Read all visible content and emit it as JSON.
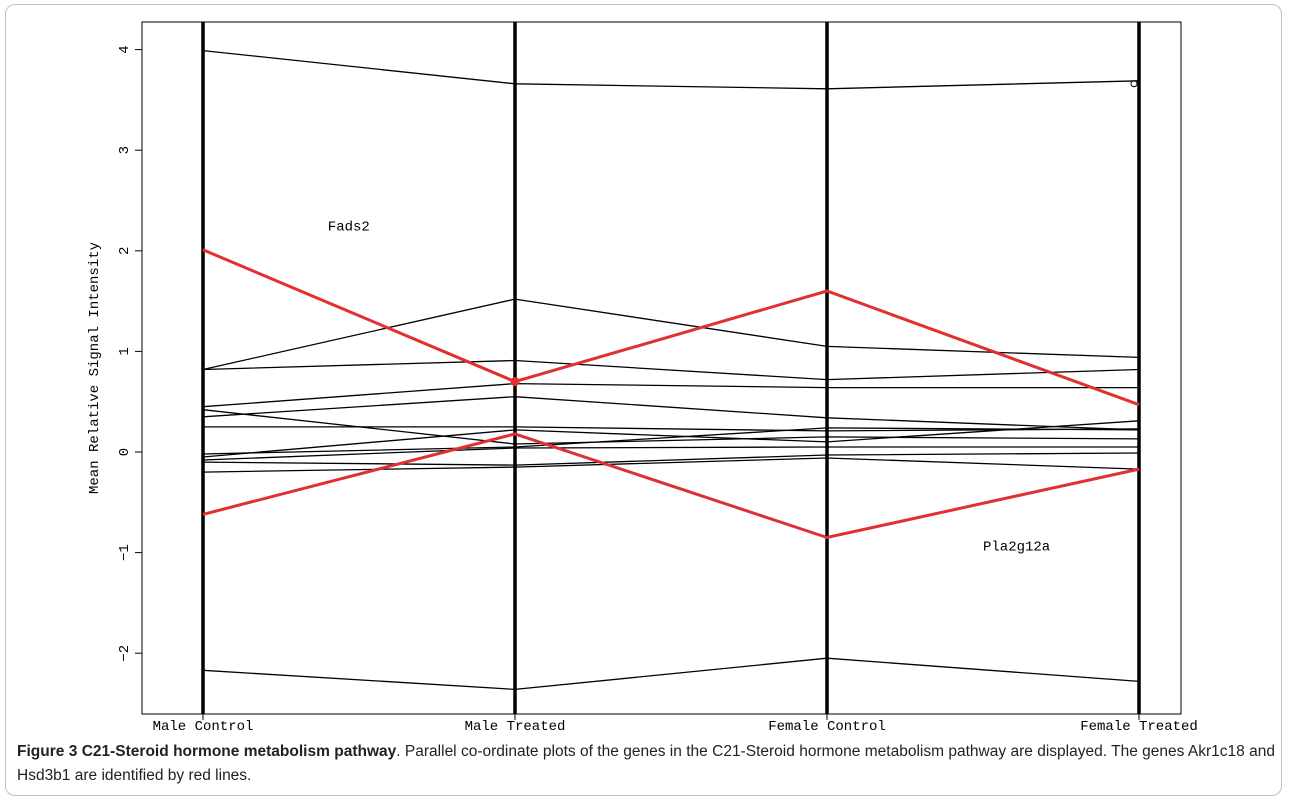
{
  "chart_data": {
    "type": "line",
    "subtype": "parallel-coordinates",
    "categories": [
      "Male Control",
      "Male Treated",
      "Female Control",
      "Female Treated"
    ],
    "ylabel": "Mean Relative Signal Intensity",
    "xlabel": "",
    "ylim": [
      -2.6,
      4.3
    ],
    "yticks": [
      -2,
      -1,
      0,
      1,
      2,
      3,
      4
    ],
    "grid": false,
    "annotations": [
      {
        "text": "Fads2",
        "x": 0.4,
        "y": 2.2
      },
      {
        "text": "Pla2g12a",
        "x": 2.5,
        "y": -0.98
      }
    ],
    "series": [
      {
        "values": [
          3.99,
          3.66,
          3.61,
          3.69
        ],
        "color": "#000000"
      },
      {
        "values": [
          0.82,
          1.52,
          1.05,
          0.94
        ],
        "color": "#000000"
      },
      {
        "values": [
          0.82,
          0.91,
          0.72,
          0.82
        ],
        "color": "#000000"
      },
      {
        "values": [
          0.45,
          0.68,
          0.64,
          0.64
        ],
        "color": "#000000"
      },
      {
        "values": [
          0.35,
          0.55,
          0.34,
          0.22
        ],
        "color": "#000000"
      },
      {
        "values": [
          0.25,
          0.25,
          0.21,
          0.23
        ],
        "color": "#000000"
      },
      {
        "values": [
          0.42,
          0.08,
          0.15,
          0.13
        ],
        "color": "#000000"
      },
      {
        "values": [
          -0.02,
          0.05,
          0.24,
          0.22
        ],
        "color": "#000000"
      },
      {
        "values": [
          -0.05,
          0.22,
          0.1,
          0.31
        ],
        "color": "#000000"
      },
      {
        "values": [
          -0.08,
          0.04,
          0.05,
          0.05
        ],
        "color": "#000000"
      },
      {
        "values": [
          -0.1,
          -0.13,
          -0.03,
          -0.01
        ],
        "color": "#000000"
      },
      {
        "values": [
          -0.2,
          -0.15,
          -0.06,
          -0.17
        ],
        "color": "#000000"
      },
      {
        "values": [
          -2.17,
          -2.36,
          -2.05,
          -2.28
        ],
        "color": "#000000"
      },
      {
        "values": [
          2.01,
          0.7,
          1.6,
          0.47
        ],
        "color": "#e03030"
      },
      {
        "values": [
          -0.62,
          0.18,
          -0.85,
          -0.17
        ],
        "color": "#e03030"
      }
    ]
  },
  "caption": {
    "title": "Figure 3 C21-Steroid hormone metabolism pathway",
    "text": ". Parallel co-ordinate plots of the genes in the C21-Steroid hormone metabolism pathway are displayed. The genes Akr1c18 and Hsd3b1 are identified by red lines."
  }
}
